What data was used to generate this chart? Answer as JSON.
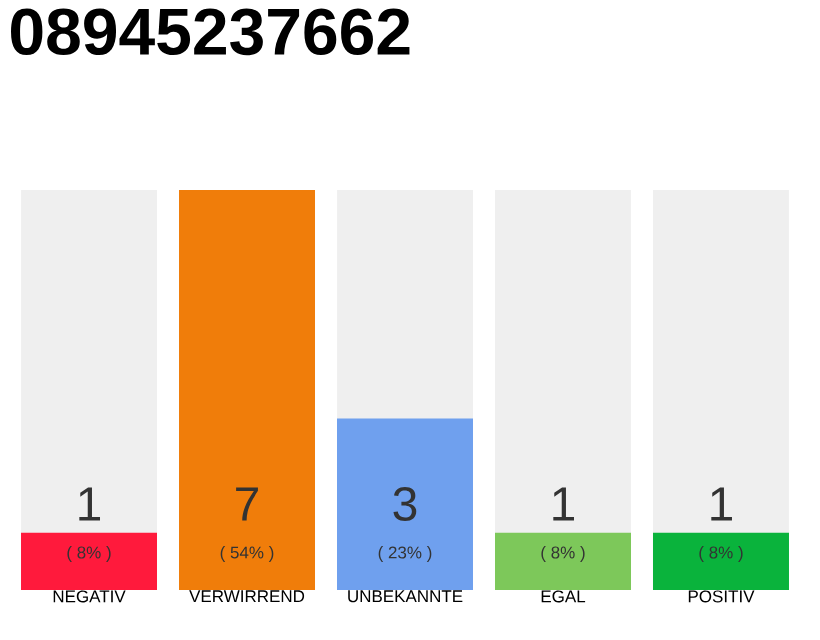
{
  "chart_data": {
    "type": "bar",
    "title": "08945237662",
    "categories": [
      "NEGATIV",
      "VERWIRREND",
      "UNBEKANNTE",
      "EGAL",
      "POSITIV"
    ],
    "values": [
      1,
      7,
      3,
      1,
      1
    ],
    "colors": [
      "#ff1a3c",
      "#f07d0a",
      "#6fa0ee",
      "#7dc85a",
      "#0ab33c"
    ],
    "ylim": [
      0,
      7
    ],
    "data_labels": true,
    "annotations": [
      "( 8% )",
      "( 54% )",
      "( 23% )",
      "( 8% )",
      "( 8% )"
    ]
  }
}
